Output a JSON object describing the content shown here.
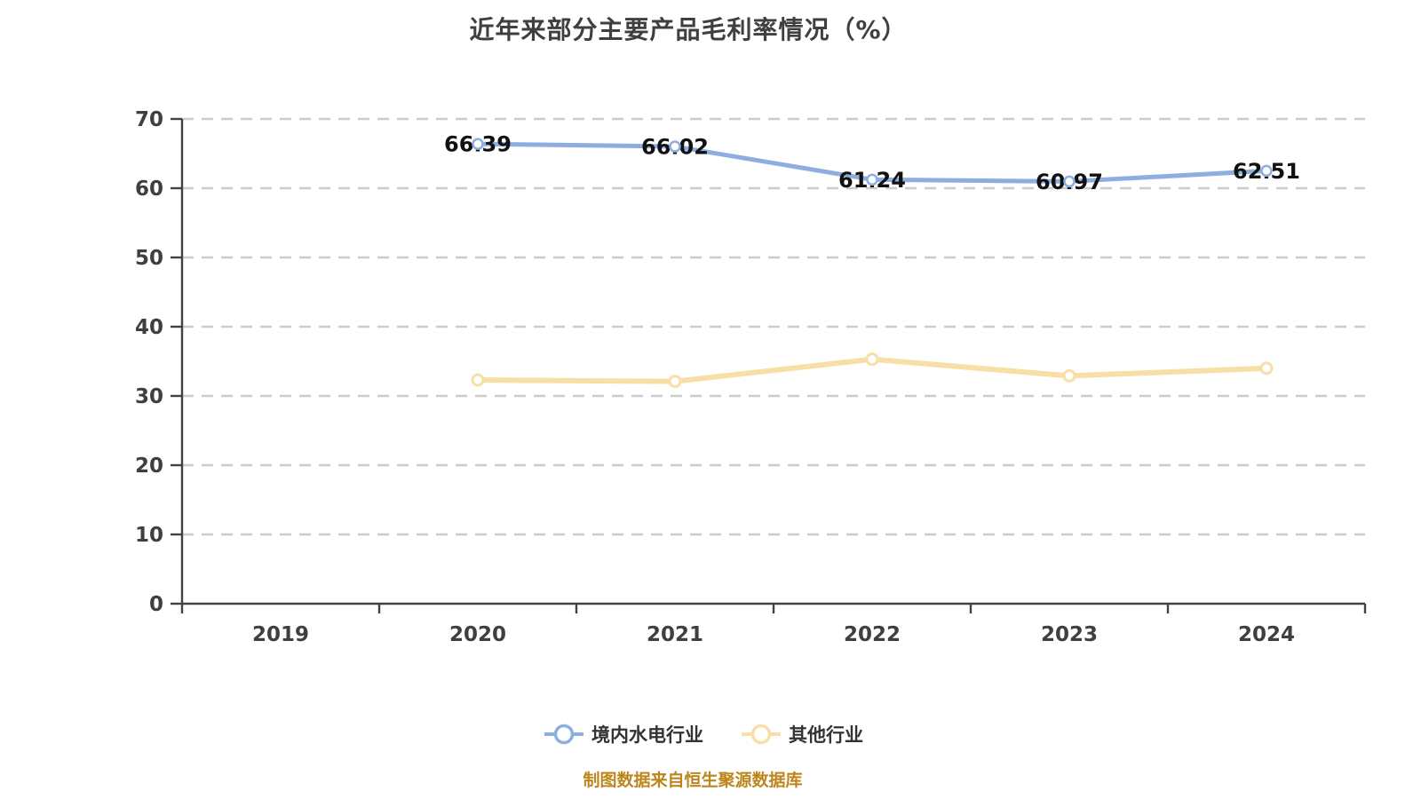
{
  "title": "近年来部分主要产品毛利率情况（%）",
  "footer": "制图数据来自恒生聚源数据库",
  "colors": {
    "background": "#ffffff",
    "axis": "#424242",
    "grid": "#cccccc",
    "axis_text": "#3f3f3f",
    "title_text": "#3f3f3f",
    "data_label": "#111111",
    "legend_text": "#333333",
    "footer_text": "#bd861d",
    "marker_fill": "#ffffff"
  },
  "chart_data": {
    "type": "line",
    "title": "近年来部分主要产品毛利率情况（%）",
    "xlabel": "",
    "ylabel": "",
    "categories": [
      "2019",
      "2020",
      "2021",
      "2022",
      "2023",
      "2024"
    ],
    "ylim": [
      0,
      70
    ],
    "ytick_step": 10,
    "yticks": [
      0,
      10,
      20,
      30,
      40,
      50,
      60,
      70
    ],
    "grid": "horizontal-dashed",
    "legend_position": "bottom",
    "series": [
      {
        "name": "境内水电行业",
        "color": "#8cafe0",
        "x": [
          "2020",
          "2021",
          "2022",
          "2023",
          "2024"
        ],
        "values": [
          66.39,
          66.02,
          61.24,
          60.97,
          62.51
        ],
        "labels": [
          "66.39",
          "66.02",
          "61.24",
          "60.97",
          "62.51"
        ],
        "show_labels": true,
        "line_width": 5,
        "marker_radius": 5.5,
        "marker_stroke": 2.5
      },
      {
        "name": "其他行业",
        "color": "#f8dfa6",
        "x": [
          "2020",
          "2021",
          "2022",
          "2023",
          "2024"
        ],
        "values": [
          32.3,
          32.1,
          35.3,
          32.9,
          34.0
        ],
        "labels": [],
        "show_labels": false,
        "line_width": 6,
        "marker_radius": 6,
        "marker_stroke": 3
      }
    ]
  }
}
